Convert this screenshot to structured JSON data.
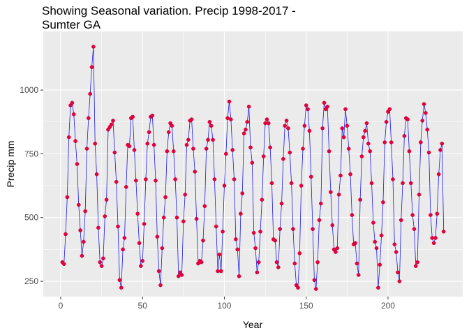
{
  "chart_data": {
    "type": "line",
    "title": "Showing Seasonal variation. Precip 1998-2017 -\nSumter GA",
    "x_label": "Year",
    "y_label": "Precip mm",
    "line_color": "#1A1AE6",
    "point_color": "#E6003C",
    "xlim": [
      -10.65,
      245.65
    ],
    "ylim": [
      190,
      1230
    ],
    "xticks": [
      0,
      50,
      100,
      150,
      200
    ],
    "yticks": [
      250,
      500,
      750,
      1000
    ],
    "grid": true,
    "x": [
      1,
      2,
      3,
      4,
      5,
      6,
      7,
      8,
      9,
      10,
      11,
      12,
      13,
      14,
      15,
      16,
      17,
      18,
      19,
      20,
      21,
      22,
      23,
      24,
      25,
      26,
      27,
      28,
      29,
      30,
      31,
      32,
      33,
      34,
      35,
      36,
      37,
      38,
      39,
      40,
      41,
      42,
      43,
      44,
      45,
      46,
      47,
      48,
      49,
      50,
      51,
      52,
      53,
      54,
      55,
      56,
      57,
      58,
      59,
      60,
      61,
      62,
      63,
      64,
      65,
      66,
      67,
      68,
      69,
      70,
      71,
      72,
      73,
      74,
      75,
      76,
      77,
      78,
      79,
      80,
      81,
      82,
      83,
      84,
      85,
      86,
      87,
      88,
      89,
      90,
      91,
      92,
      93,
      94,
      95,
      96,
      97,
      98,
      99,
      100,
      101,
      102,
      103,
      104,
      105,
      106,
      107,
      108,
      109,
      110,
      111,
      112,
      113,
      114,
      115,
      116,
      117,
      118,
      119,
      120,
      121,
      122,
      123,
      124,
      125,
      126,
      127,
      128,
      129,
      130,
      131,
      132,
      133,
      134,
      135,
      136,
      137,
      138,
      139,
      140,
      141,
      142,
      143,
      144,
      145,
      146,
      147,
      148,
      149,
      150,
      151,
      152,
      153,
      154,
      155,
      156,
      157,
      158,
      159,
      160,
      161,
      162,
      163,
      164,
      165,
      166,
      167,
      168,
      169,
      170,
      171,
      172,
      173,
      174,
      175,
      176,
      177,
      178,
      179,
      180,
      181,
      182,
      183,
      184,
      185,
      186,
      187,
      188,
      189,
      190,
      191,
      192,
      193,
      194,
      195,
      196,
      197,
      198,
      199,
      200,
      201,
      202,
      203,
      204,
      205,
      206,
      207,
      208,
      209,
      210,
      211,
      212,
      213,
      214,
      215,
      216,
      217,
      218,
      219,
      220,
      221,
      222,
      223,
      224,
      225,
      226,
      227,
      228,
      229,
      230,
      231,
      232,
      233,
      234
    ],
    "values": [
      325,
      318,
      435,
      580,
      815,
      940,
      950,
      905,
      800,
      710,
      550,
      450,
      350,
      405,
      525,
      770,
      890,
      985,
      1090,
      1170,
      790,
      670,
      460,
      325,
      310,
      340,
      505,
      570,
      845,
      855,
      865,
      880,
      755,
      640,
      465,
      255,
      225,
      375,
      420,
      620,
      785,
      780,
      890,
      895,
      765,
      645,
      515,
      400,
      310,
      330,
      475,
      650,
      790,
      835,
      895,
      900,
      785,
      645,
      425,
      290,
      235,
      380,
      500,
      580,
      760,
      835,
      870,
      860,
      760,
      650,
      500,
      270,
      285,
      275,
      485,
      590,
      785,
      805,
      880,
      885,
      770,
      680,
      495,
      320,
      330,
      325,
      410,
      545,
      770,
      805,
      875,
      860,
      805,
      650,
      465,
      290,
      355,
      290,
      445,
      625,
      750,
      890,
      955,
      885,
      765,
      650,
      415,
      375,
      270,
      515,
      595,
      830,
      845,
      875,
      935,
      775,
      715,
      440,
      380,
      285,
      325,
      445,
      570,
      740,
      870,
      885,
      870,
      775,
      635,
      415,
      410,
      325,
      305,
      455,
      555,
      730,
      860,
      880,
      850,
      755,
      635,
      455,
      320,
      235,
      225,
      360,
      625,
      770,
      860,
      940,
      925,
      840,
      660,
      455,
      255,
      220,
      325,
      490,
      555,
      850,
      950,
      925,
      935,
      760,
      600,
      470,
      375,
      365,
      380,
      590,
      665,
      850,
      815,
      925,
      860,
      770,
      670,
      510,
      395,
      400,
      320,
      275,
      570,
      740,
      815,
      840,
      870,
      790,
      760,
      635,
      480,
      405,
      380,
      225,
      315,
      430,
      560,
      795,
      875,
      915,
      925,
      795,
      650,
      395,
      365,
      285,
      250,
      490,
      635,
      820,
      890,
      885,
      760,
      635,
      510,
      455,
      310,
      325,
      590,
      795,
      880,
      945,
      910,
      845,
      755,
      510,
      420,
      400,
      420,
      515,
      670,
      765,
      790,
      445
    ]
  }
}
